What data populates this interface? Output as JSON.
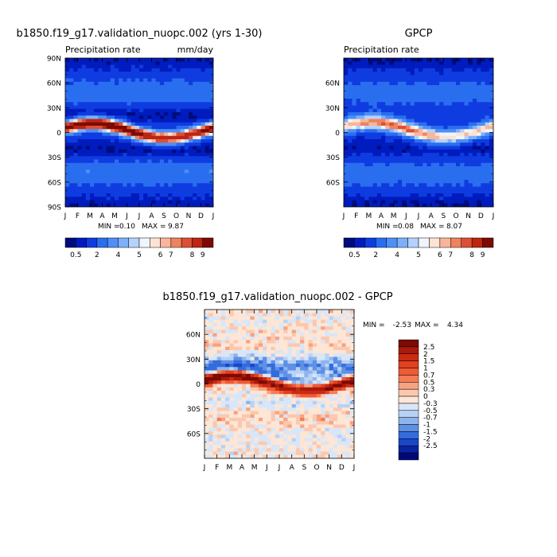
{
  "chart_data": [
    {
      "type": "heatmap",
      "title": "b1850.f19_g17.validation_nuopc.002 (yrs 1-30)",
      "subtitle_left": "Precipitation rate",
      "units": "mm/day",
      "x_ticks": [
        "J",
        "F",
        "M",
        "A",
        "M",
        "J",
        "J",
        "A",
        "S",
        "O",
        "N",
        "D",
        "J"
      ],
      "y_ticks": [
        "90N",
        "60N",
        "30N",
        "0",
        "30S",
        "60S",
        "90S"
      ],
      "y_range": [
        -90,
        90
      ],
      "min_label": "MIN =",
      "min_value": "0.10",
      "max_label": "MAX =",
      "max_value": "9.87",
      "colorbar": {
        "labels": [
          "0.5",
          "2",
          "4",
          "5",
          "6",
          "7",
          "8",
          "9"
        ],
        "colors": [
          "#000c7d",
          "#001cbe",
          "#0f3ce0",
          "#2a6ef0",
          "#4e8ef6",
          "#7db0fa",
          "#b4d2fc",
          "#eef5fc",
          "#fde3d3",
          "#f8b59a",
          "#ef8260",
          "#dc5034",
          "#be2512",
          "#7d0a03"
        ]
      }
    },
    {
      "type": "heatmap",
      "title": "GPCP",
      "subtitle_left": "Precipitation rate",
      "x_ticks": [
        "J",
        "F",
        "M",
        "A",
        "M",
        "J",
        "J",
        "A",
        "S",
        "O",
        "N",
        "D",
        "J"
      ],
      "y_ticks": [
        "60N",
        "30N",
        "0",
        "30S",
        "60S"
      ],
      "y_range": [
        -90,
        90
      ],
      "min_label": "MIN =",
      "min_value": "0.08",
      "max_label": "MAX =",
      "max_value": "8.07",
      "colorbar": {
        "labels": [
          "0.5",
          "2",
          "4",
          "5",
          "6",
          "7",
          "8",
          "9"
        ],
        "colors": [
          "#000c7d",
          "#001cbe",
          "#0f3ce0",
          "#2a6ef0",
          "#4e8ef6",
          "#7db0fa",
          "#b4d2fc",
          "#eef5fc",
          "#fde3d3",
          "#f8b59a",
          "#ef8260",
          "#dc5034",
          "#be2512",
          "#7d0a03"
        ]
      }
    },
    {
      "type": "heatmap",
      "title": "b1850.f19_g17.validation_nuopc.002 - GPCP",
      "x_ticks": [
        "J",
        "F",
        "M",
        "A",
        "M",
        "J",
        "J",
        "A",
        "S",
        "O",
        "N",
        "D",
        "J"
      ],
      "y_ticks": [
        "60N",
        "30N",
        "0",
        "30S",
        "60S"
      ],
      "y_range": [
        -90,
        90
      ],
      "min_label": "MIN =",
      "min_value": "-2.53",
      "max_label": "MAX =",
      "max_value": "4.34",
      "colorbar": {
        "labels": [
          "2.5",
          "2",
          "1.5",
          "1",
          "0.7",
          "0.5",
          "0.3",
          "0",
          "-0.3",
          "-0.5",
          "-0.7",
          "-1",
          "-1.5",
          "-2",
          "-2.5"
        ],
        "colors": [
          "#7d0a03",
          "#a81a0a",
          "#c92b12",
          "#e2401f",
          "#f05a34",
          "#f57c55",
          "#f8a282",
          "#fbc8ad",
          "#fde6d6",
          "#d8e6f8",
          "#b8d2f4",
          "#8eb4ee",
          "#5e90e6",
          "#356cdc",
          "#1a46c8",
          "#0a24a0",
          "#000878"
        ]
      }
    }
  ]
}
